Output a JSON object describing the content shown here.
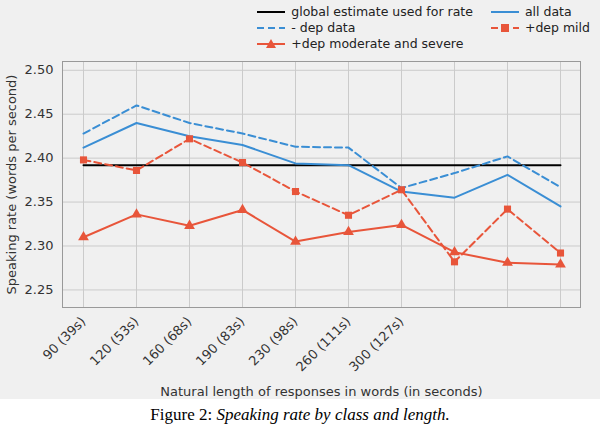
{
  "chart_data": {
    "type": "line",
    "caption": "Figure 2: Speaking rate by class and length.",
    "x_label": "Natural length of responses in words (in seconds)",
    "y_label": "Speaking rate (words per second)",
    "categories": [
      "90 (39s)",
      "120 (53s)",
      "160 (68s)",
      "190 (83s)",
      "230 (98s)",
      "260 (111s)",
      "300 (127s)",
      null,
      null,
      null
    ],
    "ylim": [
      2.23,
      2.51
    ],
    "yticks": [
      2.25,
      {
        "value": 2.3,
        "label": "2.30"
      },
      2.35,
      {
        "value": 2.4,
        "label": "2.40"
      },
      2.45,
      {
        "value": 2.5,
        "label": "2.50"
      }
    ],
    "grid": true,
    "legend": "upper right",
    "series": [
      {
        "name": "global estimate used for rate",
        "color": "#000000",
        "line_style": "solid",
        "values": [
          2.392,
          2.392,
          2.392,
          2.392,
          2.392,
          2.392,
          2.392,
          2.392,
          2.392,
          2.392
        ]
      },
      {
        "name": "all data",
        "color": "#3a8ed4",
        "line_style": "solid",
        "values": [
          2.412,
          2.44,
          2.425,
          2.415,
          2.394,
          2.392,
          2.362,
          2.355,
          2.381,
          2.345
        ]
      },
      {
        "name": "- dep data",
        "color": "#3a8ed4",
        "line_style": "dashed",
        "values": [
          2.428,
          2.46,
          2.44,
          2.428,
          2.413,
          2.412,
          2.366,
          2.383,
          2.402,
          2.367
        ]
      },
      {
        "name": "+dep mild",
        "color": "#e8553a",
        "line_style": "dashed",
        "marker": "square",
        "values": [
          2.398,
          2.386,
          2.422,
          2.395,
          2.362,
          2.335,
          2.364,
          2.282,
          2.342,
          2.292
        ]
      },
      {
        "name": "+dep moderate and severe",
        "color": "#e8553a",
        "line_style": "solid",
        "marker": "triangle",
        "values": [
          2.31,
          2.336,
          2.323,
          2.341,
          2.305,
          2.316,
          2.324,
          2.293,
          2.281,
          2.279
        ]
      }
    ]
  }
}
